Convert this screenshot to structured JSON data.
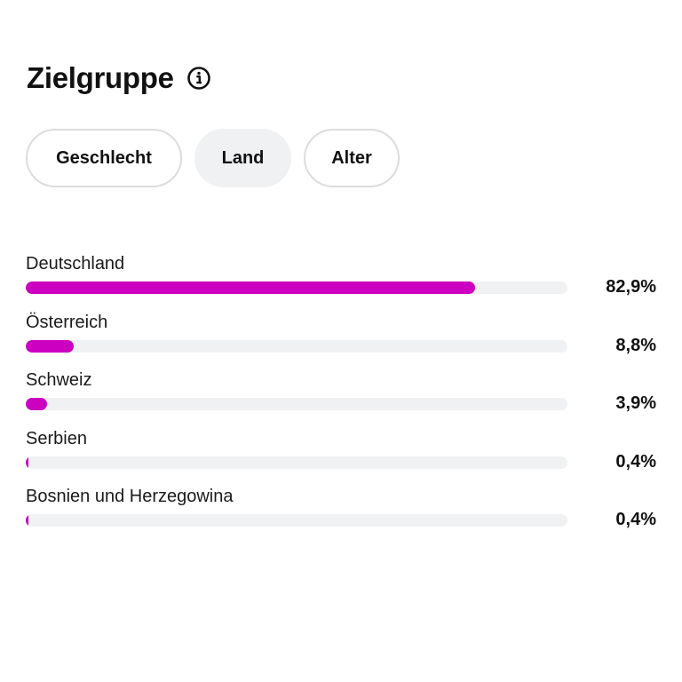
{
  "section": {
    "title": "Zielgruppe",
    "info_icon": "info-circle-icon"
  },
  "tabs": [
    {
      "label": "Geschlecht",
      "active": false
    },
    {
      "label": "Land",
      "active": true
    },
    {
      "label": "Alter",
      "active": false
    }
  ],
  "colors": {
    "bar_fill": "#cc00c0",
    "bar_track": "#eff1f3",
    "active_tab_bg": "#eff1f3",
    "tab_border": "#dcdcdc"
  },
  "countries": [
    {
      "label": "Deutschland",
      "value": 82.9,
      "value_text": "82,9%"
    },
    {
      "label": "Österreich",
      "value": 8.8,
      "value_text": "8,8%"
    },
    {
      "label": "Schweiz",
      "value": 3.9,
      "value_text": "3,9%"
    },
    {
      "label": "Serbien",
      "value": 0.4,
      "value_text": "0,4%"
    },
    {
      "label": "Bosnien und Herzegowina",
      "value": 0.4,
      "value_text": "0,4%"
    }
  ]
}
